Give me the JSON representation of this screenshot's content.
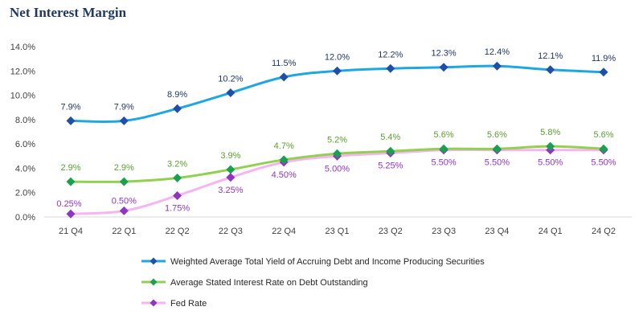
{
  "chart_data": {
    "type": "line",
    "title": "Net Interest Margin",
    "categories": [
      "21 Q4",
      "22 Q1",
      "22 Q2",
      "22 Q3",
      "22 Q4",
      "23 Q1",
      "23 Q2",
      "23 Q3",
      "23 Q4",
      "24 Q1",
      "24 Q2"
    ],
    "ylim": [
      0,
      14
    ],
    "yticks": [
      0,
      2,
      4,
      6,
      8,
      10,
      12,
      14
    ],
    "ytick_labels": [
      "0.0%",
      "2.0%",
      "4.0%",
      "6.0%",
      "8.0%",
      "10.0%",
      "12.0%",
      "14.0%"
    ],
    "grid": false,
    "legend_position": "bottom",
    "series": [
      {
        "name": "Weighted Average Total Yield of Accruing Debt and Income Producing Securities",
        "color": "#1fa7e1",
        "marker_color": "#1f4fa8",
        "label_color": "#1f3864",
        "values": [
          7.9,
          7.9,
          8.9,
          10.2,
          11.5,
          12.0,
          12.2,
          12.3,
          12.4,
          12.1,
          11.9
        ],
        "labels": [
          "7.9%",
          "7.9%",
          "8.9%",
          "10.2%",
          "11.5%",
          "12.0%",
          "12.2%",
          "12.3%",
          "12.4%",
          "12.1%",
          "11.9%"
        ],
        "label_position": "above"
      },
      {
        "name": "Average Stated Interest Rate on Debt Outstanding",
        "color": "#92d050",
        "marker_color": "#1aa150",
        "label_color": "#5a9e2f",
        "values": [
          2.9,
          2.9,
          3.2,
          3.9,
          4.7,
          5.2,
          5.4,
          5.6,
          5.6,
          5.8,
          5.6
        ],
        "labels": [
          "2.9%",
          "2.9%",
          "3.2%",
          "3.9%",
          "4.7%",
          "5.2%",
          "5.4%",
          "5.6%",
          "5.6%",
          "5.8%",
          "5.6%"
        ],
        "label_position": "above"
      },
      {
        "name": "Fed Rate",
        "color": "#f7b3f2",
        "marker_color": "#8e35c2",
        "label_color": "#8e35c2",
        "values": [
          0.25,
          0.5,
          1.75,
          3.25,
          4.5,
          5.0,
          5.25,
          5.5,
          5.5,
          5.5,
          5.5
        ],
        "labels": [
          "0.25%",
          "0.50%",
          "1.75%",
          "3.25%",
          "4.50%",
          "5.00%",
          "5.25%",
          "5.50%",
          "5.50%",
          "5.50%",
          "5.50%"
        ],
        "label_position": "mixed"
      }
    ]
  }
}
